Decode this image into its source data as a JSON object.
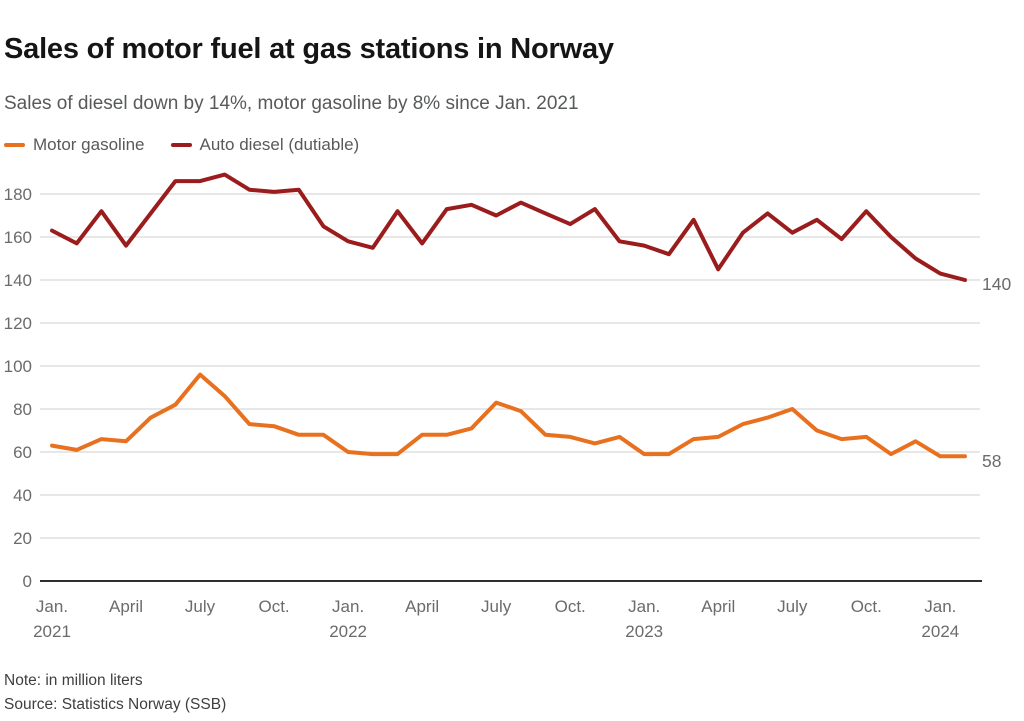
{
  "title": "Sales of motor fuel at gas stations in Norway",
  "subtitle": "Sales of diesel down by 14%, motor gasoline by 8% since Jan. 2021",
  "legend": [
    {
      "label": "Motor gasoline",
      "color": "#E8711F"
    },
    {
      "label": "Auto diesel (dutiable)",
      "color": "#9B1C1C"
    }
  ],
  "end_labels": {
    "diesel": "140",
    "gasoline": "58"
  },
  "note": "Note: in million liters",
  "source": "Source: Statistics Norway (SSB)",
  "chart_data": {
    "type": "line",
    "title": "Sales of motor fuel at gas stations in Norway",
    "unit": "million liters",
    "ylim": [
      0,
      195
    ],
    "yticks": [
      0,
      20,
      40,
      60,
      80,
      100,
      120,
      140,
      160,
      180
    ],
    "grid": true,
    "legend_position": "top-left",
    "months": [
      "Jan. 2021",
      "Feb. 2021",
      "Mar. 2021",
      "Apr. 2021",
      "May 2021",
      "Jun. 2021",
      "Jul. 2021",
      "Aug. 2021",
      "Sep. 2021",
      "Oct. 2021",
      "Nov. 2021",
      "Dec. 2021",
      "Jan. 2022",
      "Feb. 2022",
      "Mar. 2022",
      "Apr. 2022",
      "May 2022",
      "Jun. 2022",
      "Jul. 2022",
      "Aug. 2022",
      "Sep. 2022",
      "Oct. 2022",
      "Nov. 2022",
      "Dec. 2022",
      "Jan. 2023",
      "Feb. 2023",
      "Mar. 2023",
      "Apr. 2023",
      "May 2023",
      "Jun. 2023",
      "Jul. 2023",
      "Aug. 2023",
      "Sep. 2023",
      "Oct. 2023",
      "Nov. 2023",
      "Dec. 2023",
      "Jan. 2024",
      "Feb. 2024"
    ],
    "xticks": [
      {
        "index": 0,
        "label": "Jan.",
        "year": "2021"
      },
      {
        "index": 3,
        "label": "April"
      },
      {
        "index": 6,
        "label": "July"
      },
      {
        "index": 9,
        "label": "Oct."
      },
      {
        "index": 12,
        "label": "Jan.",
        "year": "2022"
      },
      {
        "index": 15,
        "label": "April"
      },
      {
        "index": 18,
        "label": "July"
      },
      {
        "index": 21,
        "label": "Oct."
      },
      {
        "index": 24,
        "label": "Jan.",
        "year": "2023"
      },
      {
        "index": 27,
        "label": "April"
      },
      {
        "index": 30,
        "label": "July"
      },
      {
        "index": 33,
        "label": "Oct."
      },
      {
        "index": 36,
        "label": "Jan.",
        "year": "2024"
      }
    ],
    "series": [
      {
        "name": "Motor gasoline",
        "color": "#E8711F",
        "values": [
          63,
          61,
          66,
          65,
          76,
          82,
          96,
          86,
          73,
          72,
          68,
          68,
          60,
          59,
          59,
          68,
          68,
          71,
          83,
          79,
          68,
          67,
          64,
          67,
          59,
          59,
          66,
          67,
          73,
          76,
          80,
          70,
          66,
          67,
          59,
          65,
          58,
          58
        ]
      },
      {
        "name": "Auto diesel (dutiable)",
        "color": "#9B1C1C",
        "values": [
          163,
          157,
          172,
          156,
          171,
          186,
          186,
          189,
          182,
          181,
          182,
          165,
          158,
          155,
          172,
          157,
          173,
          175,
          170,
          176,
          171,
          166,
          173,
          158,
          156,
          152,
          168,
          145,
          162,
          171,
          162,
          168,
          159,
          172,
          160,
          150,
          143,
          140
        ]
      }
    ]
  }
}
